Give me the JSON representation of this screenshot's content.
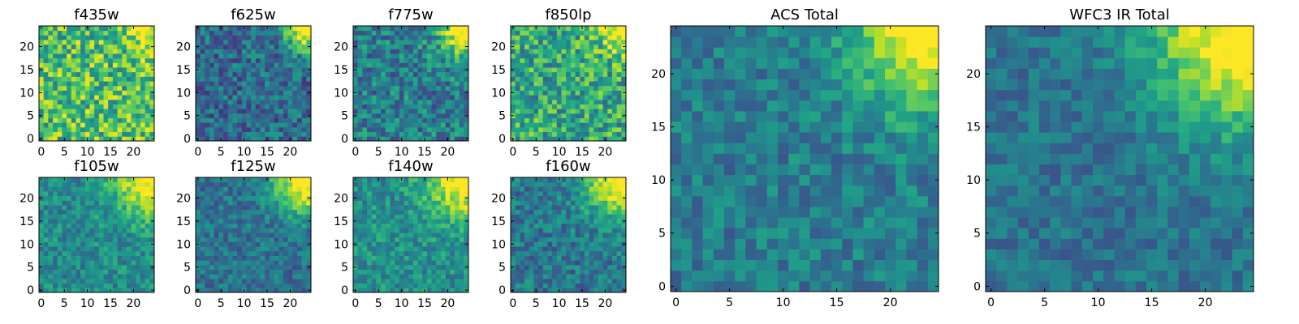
{
  "figure": {
    "colormap": "viridis",
    "colors": {
      "low": "#440154",
      "mid": "#21918c",
      "high": "#fde725"
    }
  },
  "chart_data": [
    {
      "type": "heatmap",
      "title": "f435w",
      "xticks": [
        "0",
        "5",
        "10",
        "15",
        "20"
      ],
      "yticks": [
        "0",
        "5",
        "10",
        "15",
        "20"
      ],
      "xlim": [
        -0.5,
        24.5
      ],
      "ylim": [
        -0.5,
        24.5
      ],
      "grid": false,
      "colormap": "viridis",
      "grid_size": [
        25,
        25
      ],
      "background_level": 0.7,
      "noise": 0.28,
      "source": {
        "x": 24,
        "y": 24,
        "peak": 0.4,
        "radius": 3.5
      }
    },
    {
      "type": "heatmap",
      "title": "f625w",
      "xticks": [
        "0",
        "5",
        "10",
        "15",
        "20"
      ],
      "yticks": [
        "0",
        "5",
        "10",
        "15",
        "20"
      ],
      "xlim": [
        -0.5,
        24.5
      ],
      "ylim": [
        -0.5,
        24.5
      ],
      "grid": false,
      "colormap": "viridis",
      "grid_size": [
        25,
        25
      ],
      "background_level": 0.35,
      "noise": 0.2,
      "source": {
        "x": 24,
        "y": 24,
        "peak": 0.75,
        "radius": 3.5
      }
    },
    {
      "type": "heatmap",
      "title": "f775w",
      "xticks": [
        "0",
        "5",
        "10",
        "15",
        "20"
      ],
      "yticks": [
        "0",
        "5",
        "10",
        "15",
        "20"
      ],
      "xlim": [
        -0.5,
        24.5
      ],
      "ylim": [
        -0.5,
        24.5
      ],
      "grid": false,
      "colormap": "viridis",
      "grid_size": [
        25,
        25
      ],
      "background_level": 0.42,
      "noise": 0.22,
      "source": {
        "x": 24,
        "y": 24,
        "peak": 0.7,
        "radius": 4
      }
    },
    {
      "type": "heatmap",
      "title": "f850lp",
      "xticks": [
        "0",
        "5",
        "10",
        "15",
        "20"
      ],
      "yticks": [
        "0",
        "5",
        "10",
        "15",
        "20"
      ],
      "xlim": [
        -0.5,
        24.5
      ],
      "ylim": [
        -0.5,
        24.5
      ],
      "grid": false,
      "colormap": "viridis",
      "grid_size": [
        25,
        25
      ],
      "background_level": 0.6,
      "noise": 0.26,
      "source": {
        "x": 24,
        "y": 24,
        "peak": 0.5,
        "radius": 4
      }
    },
    {
      "type": "heatmap",
      "title": "f105w",
      "xticks": [
        "0",
        "5",
        "10",
        "15",
        "20"
      ],
      "yticks": [
        "0",
        "5",
        "10",
        "15",
        "20"
      ],
      "xlim": [
        -0.5,
        24.5
      ],
      "ylim": [
        -0.5,
        24.5
      ],
      "grid": false,
      "colormap": "viridis",
      "grid_size": [
        25,
        25
      ],
      "background_level": 0.48,
      "noise": 0.16,
      "source": {
        "x": 24,
        "y": 24,
        "peak": 0.6,
        "radius": 5.5
      }
    },
    {
      "type": "heatmap",
      "title": "f125w",
      "xticks": [
        "0",
        "5",
        "10",
        "15",
        "20"
      ],
      "yticks": [
        "0",
        "5",
        "10",
        "15",
        "20"
      ],
      "xlim": [
        -0.5,
        24.5
      ],
      "ylim": [
        -0.5,
        24.5
      ],
      "grid": false,
      "colormap": "viridis",
      "grid_size": [
        25,
        25
      ],
      "background_level": 0.38,
      "noise": 0.15,
      "source": {
        "x": 24,
        "y": 24,
        "peak": 0.75,
        "radius": 5
      }
    },
    {
      "type": "heatmap",
      "title": "f140w",
      "xticks": [
        "0",
        "5",
        "10",
        "15",
        "20"
      ],
      "yticks": [
        "0",
        "5",
        "10",
        "15",
        "20"
      ],
      "xlim": [
        -0.5,
        24.5
      ],
      "ylim": [
        -0.5,
        24.5
      ],
      "grid": false,
      "colormap": "viridis",
      "grid_size": [
        25,
        25
      ],
      "background_level": 0.5,
      "noise": 0.16,
      "source": {
        "x": 24,
        "y": 24,
        "peak": 0.6,
        "radius": 5.5
      }
    },
    {
      "type": "heatmap",
      "title": "f160w",
      "xticks": [
        "0",
        "5",
        "10",
        "15",
        "20"
      ],
      "yticks": [
        "0",
        "5",
        "10",
        "15",
        "20"
      ],
      "xlim": [
        -0.5,
        24.5
      ],
      "ylim": [
        -0.5,
        24.5
      ],
      "grid": false,
      "colormap": "viridis",
      "grid_size": [
        25,
        25
      ],
      "background_level": 0.4,
      "noise": 0.17,
      "source": {
        "x": 24,
        "y": 24,
        "peak": 0.75,
        "radius": 5.5
      }
    },
    {
      "type": "heatmap",
      "title": "ACS Total",
      "xticks": [
        "0",
        "5",
        "10",
        "15",
        "20"
      ],
      "yticks": [
        "0",
        "5",
        "10",
        "15",
        "20"
      ],
      "xlim": [
        -0.5,
        24.5
      ],
      "ylim": [
        -0.5,
        24.5
      ],
      "grid": false,
      "colormap": "viridis",
      "grid_size": [
        25,
        25
      ],
      "background_level": 0.42,
      "noise": 0.15,
      "source": {
        "x": 24,
        "y": 24,
        "peak": 0.7,
        "radius": 5
      }
    },
    {
      "type": "heatmap",
      "title": "WFC3 IR Total",
      "xticks": [
        "0",
        "5",
        "10",
        "15",
        "20"
      ],
      "yticks": [
        "0",
        "5",
        "10",
        "15",
        "20"
      ],
      "xlim": [
        -0.5,
        24.5
      ],
      "ylim": [
        -0.5,
        24.5
      ],
      "grid": false,
      "colormap": "viridis",
      "grid_size": [
        25,
        25
      ],
      "background_level": 0.38,
      "noise": 0.12,
      "source": {
        "x": 24,
        "y": 24,
        "peak": 0.75,
        "radius": 6
      }
    }
  ]
}
